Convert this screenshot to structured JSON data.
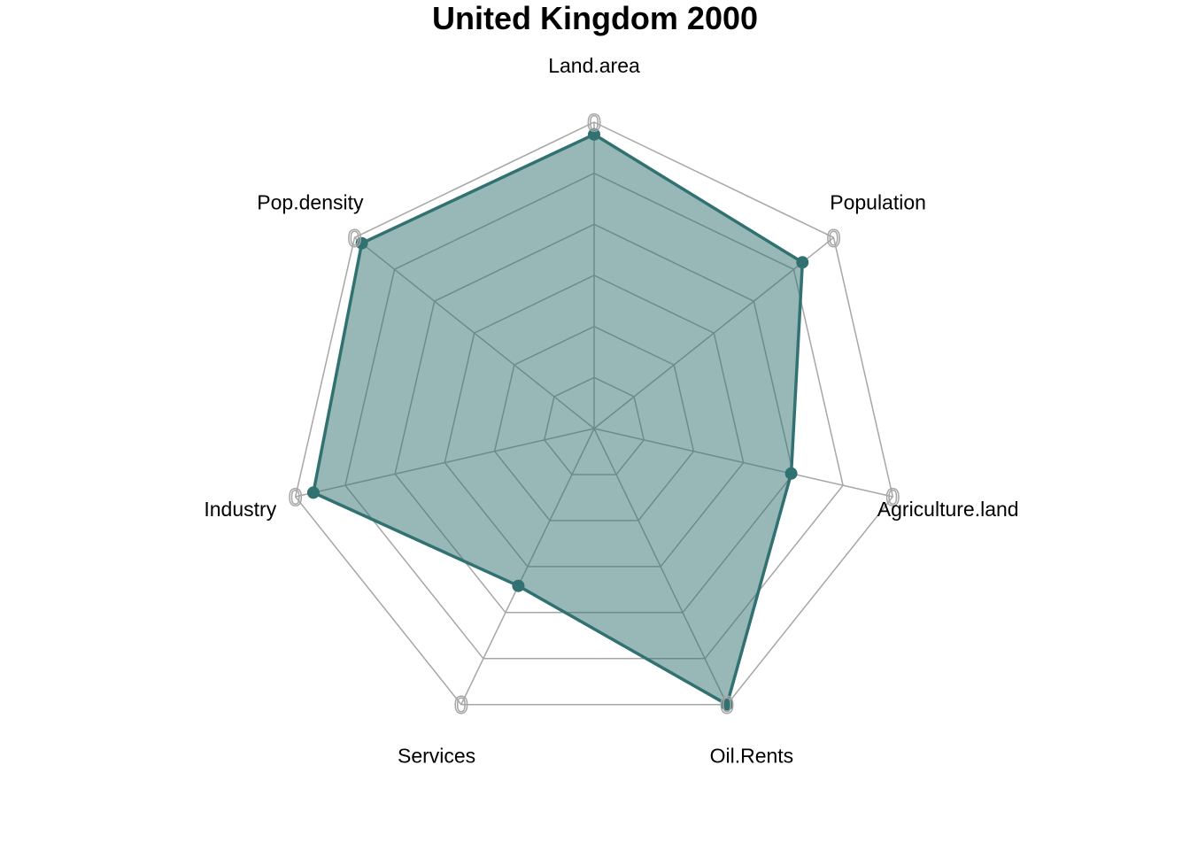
{
  "chart_data": {
    "type": "radar",
    "title": "United Kingdom 2000",
    "axes": [
      "Land.area",
      "Population",
      "Agriculture.land",
      "Oil.Rents",
      "Services",
      "Industry",
      "Pop.density"
    ],
    "ring_label": "0",
    "series": [
      {
        "values": [
          0.96,
          0.87,
          0.66,
          1.0,
          0.57,
          0.94,
          0.97
        ]
      }
    ],
    "rlim": [
      0,
      1
    ],
    "grid": true,
    "colors": {
      "series": "#317171",
      "fill": "#317171",
      "grid": "#a6a6a6"
    }
  }
}
